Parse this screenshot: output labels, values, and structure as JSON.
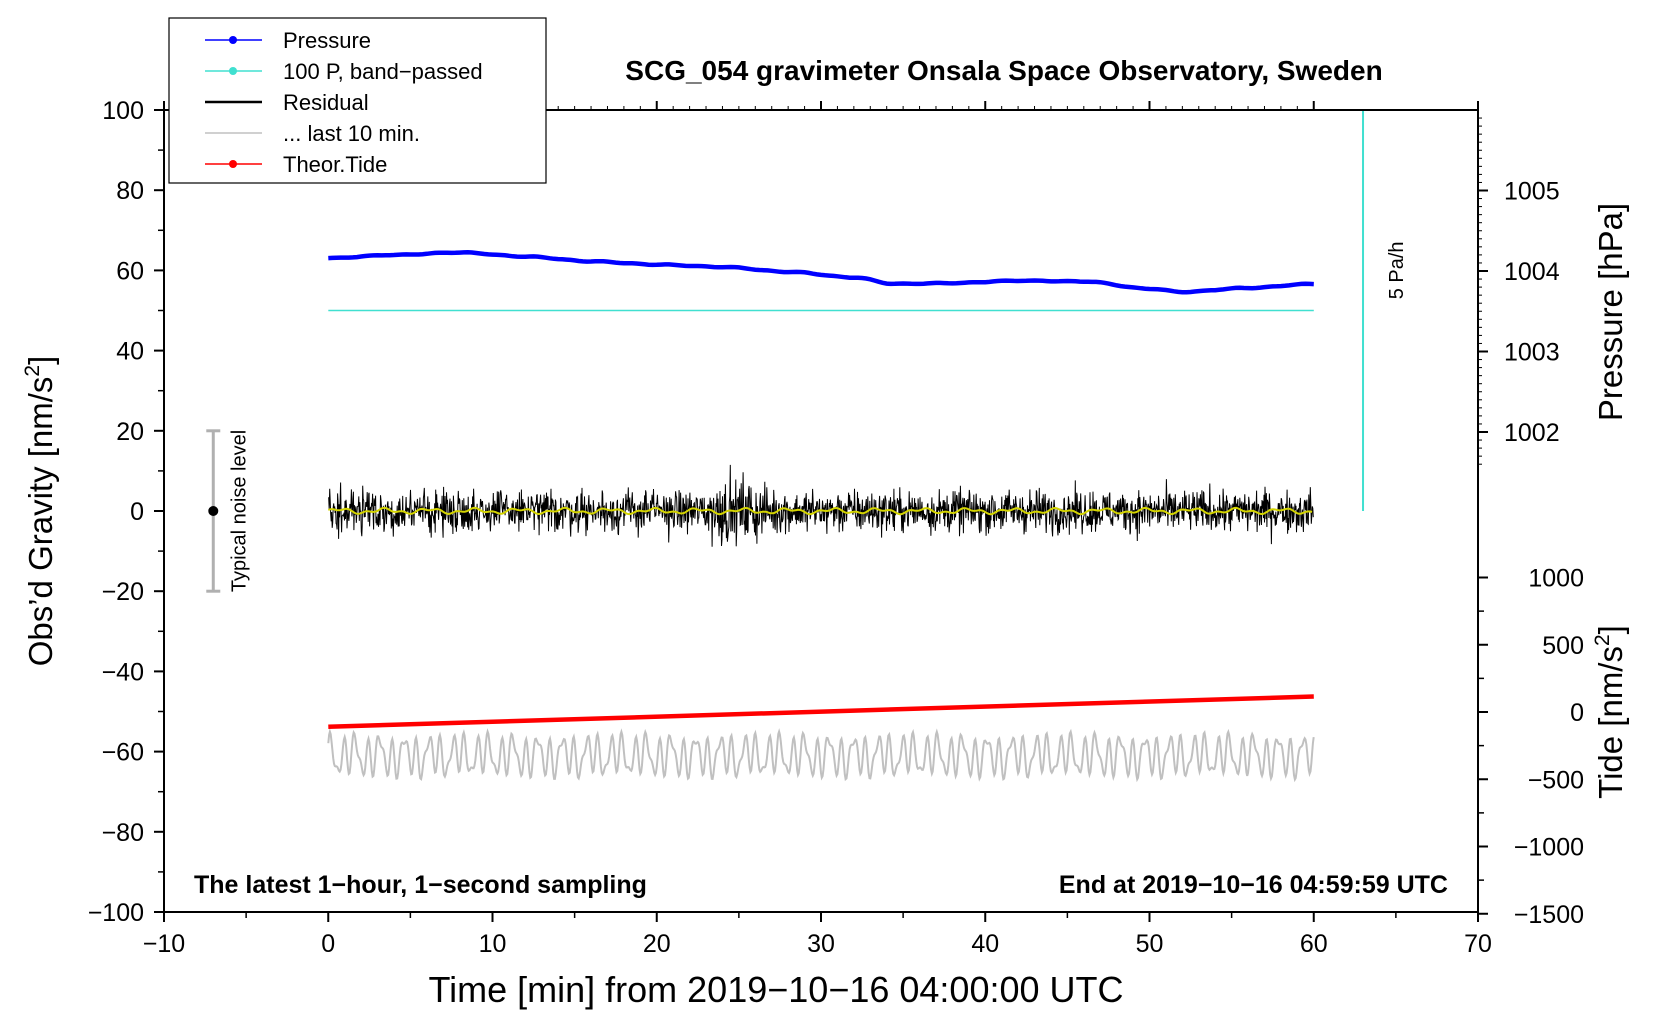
{
  "chart_data": {
    "type": "line",
    "title": "SCG_054 gravimeter Onsala Space Observatory, Sweden",
    "xlabel": "Time [min] from 2019−10−16 04:00:00 UTC",
    "xlim": [
      -10,
      70
    ],
    "x_ticks": [
      -10,
      0,
      10,
      20,
      30,
      40,
      50,
      60,
      70
    ],
    "x_tick_labels": [
      "−10",
      "0",
      "10",
      "20",
      "30",
      "40",
      "50",
      "60",
      "70"
    ],
    "left_axis": {
      "label_main": "Obs’d Gravity [nm/s",
      "label_sup": "2",
      "label_close": "]",
      "ylim": [
        -100,
        100
      ],
      "ticks": [
        -100,
        -80,
        -60,
        -40,
        -20,
        0,
        20,
        40,
        60,
        80,
        100
      ],
      "tick_labels": [
        "−100",
        "−80",
        "−60",
        "−40",
        "−20",
        "0",
        "20",
        "40",
        "60",
        "80",
        "100"
      ]
    },
    "pressure_axis": {
      "label": "Pressure [hPa]",
      "ticks": [
        1002,
        1003,
        1004,
        1005
      ],
      "tick_labels": [
        "1002",
        "1003",
        "1004",
        "1005"
      ]
    },
    "tide_axis": {
      "label_main": "Tide [nm/s",
      "label_sup": "2",
      "label_close": "]",
      "ticks": [
        -1500,
        -1000,
        -500,
        0,
        500,
        1000
      ],
      "tick_labels": [
        "−1500",
        "−1000",
        "−500",
        "0",
        "500",
        "1000"
      ]
    },
    "legend": {
      "placement": "top-left",
      "entries": [
        {
          "label": "Pressure",
          "color": "#0000ff",
          "marker": true
        },
        {
          "label": "100 P, band−passed",
          "color": "#40e0d0",
          "marker": true
        },
        {
          "label": "Residual",
          "color": "#000000",
          "marker": false
        },
        {
          "label": "... last 10 min.",
          "color": "#c0c0c0",
          "marker": false
        },
        {
          "label": "Theor.Tide",
          "color": "#ff0000",
          "marker": true
        }
      ]
    },
    "series": [
      {
        "name": "Pressure",
        "color": "#0000ff",
        "axis": "pressure_hPa",
        "x": [
          0,
          4,
          8,
          12,
          16,
          20,
          24,
          28,
          32,
          34.5,
          38,
          42,
          46,
          50,
          52,
          56,
          60
        ],
        "y": [
          1004.16,
          1004.2,
          1004.23,
          1004.18,
          1004.12,
          1004.08,
          1004.05,
          1003.99,
          1003.92,
          1003.84,
          1003.85,
          1003.88,
          1003.87,
          1003.78,
          1003.74,
          1003.79,
          1003.84
        ]
      },
      {
        "name": "100 P, band−passed",
        "color": "#40e0d0",
        "axis": "gravity_nm_s2",
        "x": [
          0,
          60
        ],
        "y": [
          50,
          50
        ]
      },
      {
        "name": "Residual",
        "color": "#000000",
        "axis": "gravity_nm_s2",
        "x_range": [
          0,
          60
        ],
        "approx_amplitude": 5,
        "centre": 0
      },
      {
        "name": "Residual smoothed",
        "color": "#d4d400",
        "axis": "gravity_nm_s2",
        "x_range": [
          0,
          60
        ],
        "approx_amplitude": 0.8,
        "centre": 0
      },
      {
        "name": "... last 10 min.",
        "color": "#c0c0c0",
        "axis": "gravity_nm_s2",
        "x_range": [
          0,
          60
        ],
        "approx_amplitude": 4,
        "centre": -61
      },
      {
        "name": "Theor.Tide",
        "color": "#ff0000",
        "axis": "tide_nm_s2",
        "x": [
          0,
          60
        ],
        "y": [
          -110,
          115
        ]
      }
    ],
    "rate_bar": {
      "label": "5 Pa/h",
      "x": 63,
      "y_from": 0,
      "y_to": 100,
      "color": "#40e0d0"
    },
    "noise_bar": {
      "label": "Typical noise level",
      "x": -7,
      "center": 0,
      "low": -20,
      "high": 20
    },
    "annotations": {
      "bottom_left": "The latest 1−hour, 1−second sampling",
      "bottom_right": "End at 2019−10−16 04:59:59 UTC"
    }
  }
}
